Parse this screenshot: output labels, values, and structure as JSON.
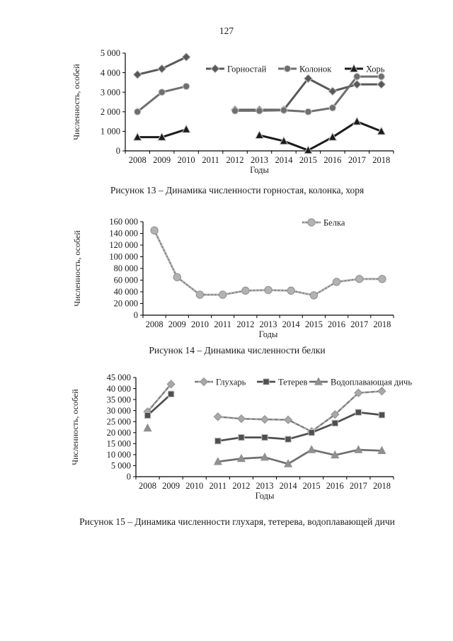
{
  "page": {
    "number": "127"
  },
  "chart_data": [
    {
      "type": "line",
      "caption": "Рисунок 13 – Динамика численности горностая, колонка, хоря",
      "ylabel": "Численность, особей",
      "xlabel": "Годы",
      "ylim": [
        0,
        5000
      ],
      "ytick_step": 1000,
      "grid": false,
      "legend_position": "inside-top",
      "categories": [
        2008,
        2009,
        2010,
        2011,
        2012,
        2013,
        2014,
        2015,
        2016,
        2017,
        2018
      ],
      "series": [
        {
          "name": "Горностай",
          "marker": "diamond",
          "color": "#595959",
          "line_style": "solid",
          "values": [
            3900,
            4200,
            4800,
            null,
            2100,
            2100,
            2100,
            3700,
            3050,
            3400,
            3400
          ]
        },
        {
          "name": "Колонок",
          "marker": "circle",
          "color": "#6f6f6f",
          "line_style": "solid",
          "values": [
            2000,
            3000,
            3300,
            null,
            2050,
            2050,
            2080,
            2000,
            2200,
            3800,
            3800
          ]
        },
        {
          "name": "Хорь",
          "marker": "triangle",
          "color": "#1c1c1c",
          "line_style": "solid",
          "values": [
            700,
            700,
            1100,
            null,
            null,
            800,
            500,
            30,
            700,
            1500,
            1000
          ]
        }
      ]
    },
    {
      "type": "line",
      "caption": "Рисунок 14 – Динамика численности белки",
      "ylabel": "Численность, особей",
      "xlabel": "Годы",
      "ylim": [
        0,
        160000
      ],
      "ytick_step": 20000,
      "grid": false,
      "legend_position": "inside-top-right",
      "categories": [
        2008,
        2009,
        2010,
        2011,
        2012,
        2013,
        2014,
        2015,
        2016,
        2017,
        2018
      ],
      "series": [
        {
          "name": "Белка",
          "marker": "circle",
          "color": "#8f8f8f",
          "marker_color": "#b2b2b2",
          "line_style": "dash-dot",
          "values": [
            145000,
            65000,
            35000,
            35000,
            42000,
            43000,
            42000,
            34000,
            57000,
            62000,
            62000
          ]
        }
      ]
    },
    {
      "type": "line",
      "caption": "Рисунок 15 – Динамика численности глухаря, тетерева, водоплавающей дичи",
      "ylabel": "Численность, особей",
      "xlabel": "Годы",
      "ylim": [
        0,
        45000
      ],
      "ytick_step": 5000,
      "grid": false,
      "legend_position": "inside-top",
      "categories": [
        2008,
        2009,
        2010,
        2011,
        2012,
        2013,
        2014,
        2015,
        2016,
        2017,
        2018
      ],
      "series": [
        {
          "name": "Глухарь",
          "marker": "diamond",
          "color": "#8d8d8d",
          "marker_color": "#a9a9a9",
          "line_style": "dashed",
          "values": [
            29500,
            42000,
            null,
            27200,
            26300,
            26000,
            25800,
            20500,
            28200,
            38000,
            38800
          ]
        },
        {
          "name": "Тетерев",
          "marker": "square",
          "color": "#4f4f4f",
          "line_style": "solid",
          "values": [
            27800,
            37500,
            null,
            16200,
            17800,
            17800,
            17000,
            20000,
            24300,
            29200,
            28000
          ]
        },
        {
          "name": "Водоплавающая дичь",
          "marker": "triangle",
          "color": "#6f6f6f",
          "marker_color": "#909090",
          "line_style": "solid",
          "values": [
            22000,
            null,
            null,
            6800,
            8200,
            8800,
            5800,
            12200,
            9800,
            12200,
            11800
          ]
        }
      ]
    }
  ]
}
